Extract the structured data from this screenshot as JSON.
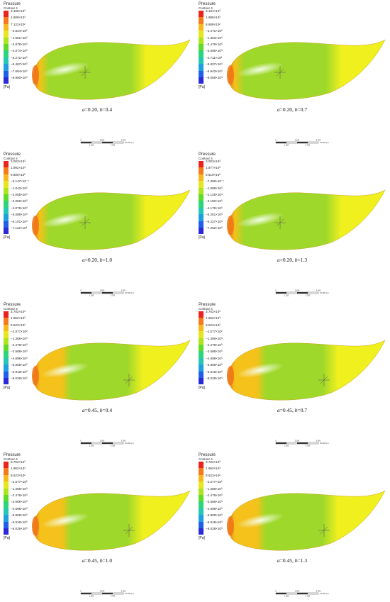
{
  "panels": [
    {
      "a": "0.20",
      "b": "0.4",
      "legend_title": "Pressure",
      "legend_subtitle": "Contour 4",
      "legend_unit": "[Pa]",
      "legend_values": [
        "3.105×10³",
        "1.909×10³",
        "7.122×10²",
        "−4.844×10²",
        "−1.681×10³",
        "−2.878×10³",
        "−4.074×10³",
        "−5.271×10³",
        "−6.467×10³",
        "−7.664×10³",
        "−8.860×10³"
      ],
      "scale_labels": [
        "0",
        "2.500",
        "5.000",
        "10.000 (m)",
        "1.250",
        "3.750"
      ]
    },
    {
      "a": "0.20",
      "b": "0.7",
      "legend_title": "Pressure",
      "legend_subtitle": "Contour 4",
      "legend_unit": "[Pa]",
      "legend_values": [
        "3.101×10³",
        "1.985×10³",
        "8.689×10²",
        "−2.471×10²",
        "−1.363×10³",
        "−2.479×10³",
        "−3.595×10³",
        "−4.711×10³",
        "−5.827×10³",
        "−6.943×10³",
        "−8.059×10³"
      ],
      "scale_labels": [
        "0",
        "2.500",
        "5.000",
        "10.000 (m)",
        "1.250",
        "3.750"
      ]
    },
    {
      "a": "0.20",
      "b": "1.0",
      "legend_title": "Pressure",
      "legend_subtitle": "Contour 4",
      "legend_unit": "[Pa]",
      "legend_values": [
        "3.003×10³",
        "1.992×10³",
        "9.800×10²",
        "−3.147×10⁻¹",
        "−1.043×10³",
        "−2.055×10³",
        "−3.066×10³",
        "−4.078×10³",
        "−5.089×10³",
        "−6.101×10³",
        "−7.112×10³"
      ],
      "scale_labels": [
        "0",
        "2.500",
        "5.000",
        "10.000 (m)",
        "1.250",
        "3.750"
      ]
    },
    {
      "a": "0.20",
      "b": "1.3",
      "legend_title": "Pressure",
      "legend_subtitle": "Contour 4",
      "legend_unit": "[Pa]",
      "legend_values": [
        "3.003×10³",
        "1.977×10³",
        "9.519×10²",
        "−7.359×10⁻¹",
        "−1.099×10³",
        "−2.125×10³",
        "−3.150×10³",
        "−4.176×10³",
        "−5.201×10³",
        "−6.227×10³",
        "−7.252×10³"
      ],
      "scale_labels": [
        "0",
        "2.500",
        "5.000",
        "10.000 (m)",
        "1.250",
        "3.750"
      ]
    },
    {
      "a": "0.45",
      "b": "0.4",
      "legend_title": "Pressure",
      "legend_subtitle": "Contour 4",
      "legend_unit": "[Pa]",
      "legend_values": [
        "3.702×10³",
        "1.962×10³",
        "8.523×10²",
        "−2.577×10²",
        "−1.368×10³",
        "−2.478×10³",
        "−3.588×10³",
        "−4.698×10³",
        "−5.808×10³",
        "−6.918×10³",
        "−8.028×10³"
      ],
      "scale_labels": [
        "0",
        "2.500",
        "5.000",
        "10.000 (m)",
        "1.250",
        "3.750"
      ]
    },
    {
      "a": "0.45",
      "b": "0.7",
      "legend_title": "Pressure",
      "legend_subtitle": "Contour 4",
      "legend_unit": "[Pa]",
      "legend_values": [
        "3.702×10³",
        "1.962×10³",
        "8.523×10²",
        "−2.577×10²",
        "−1.368×10³",
        "−2.478×10³",
        "−3.588×10³",
        "−4.698×10³",
        "−5.808×10³",
        "−6.918×10³",
        "−8.028×10³"
      ],
      "scale_labels": [
        "0",
        "2.500",
        "5.000",
        "10.000 (m)",
        "1.250",
        "3.750"
      ]
    },
    {
      "a": "0.45",
      "b": "1.0",
      "legend_title": "Pressure",
      "legend_subtitle": "Contour 4",
      "legend_unit": "[Pa]",
      "legend_values": [
        "3.702×10³",
        "1.962×10³",
        "8.523×10²",
        "−2.577×10²",
        "−1.368×10³",
        "−2.478×10³",
        "−3.588×10³",
        "−4.698×10³",
        "−5.808×10³",
        "−6.918×10³",
        "−8.028×10³"
      ],
      "scale_labels": [
        "0",
        "2.500",
        "5.000",
        "10.000 (m)",
        "1.250",
        "3.750"
      ]
    },
    {
      "a": "0.45",
      "b": "1.3",
      "legend_title": "Pressure",
      "legend_subtitle": "Contour 4",
      "legend_unit": "[Pa]",
      "legend_values": [
        "3.702×10³",
        "1.962×10³",
        "8.523×10²",
        "−2.577×10²",
        "−1.368×10³",
        "−2.478×10³",
        "−3.588×10³",
        "−4.698×10³",
        "−5.808×10³",
        "−6.918×10³",
        "−8.028×10³"
      ],
      "scale_labels": [
        "0",
        "2.500",
        "5.000",
        "10.000 (m)",
        "1.250",
        "3.750"
      ]
    }
  ],
  "legend_colors": [
    "#e8241c",
    "#f57a1c",
    "#f7b81e",
    "#e6e61c",
    "#aee41c",
    "#5fdc2a",
    "#2cd47c",
    "#22c8b4",
    "#1f9ee0",
    "#2060e8",
    "#2a2ad8"
  ],
  "body_colors": {
    "nose": "#f07818",
    "nose_ring": "#f4c21a",
    "mid": "#9ed82a",
    "tail": "#f0f01e",
    "highlight": "#f6fff0"
  }
}
